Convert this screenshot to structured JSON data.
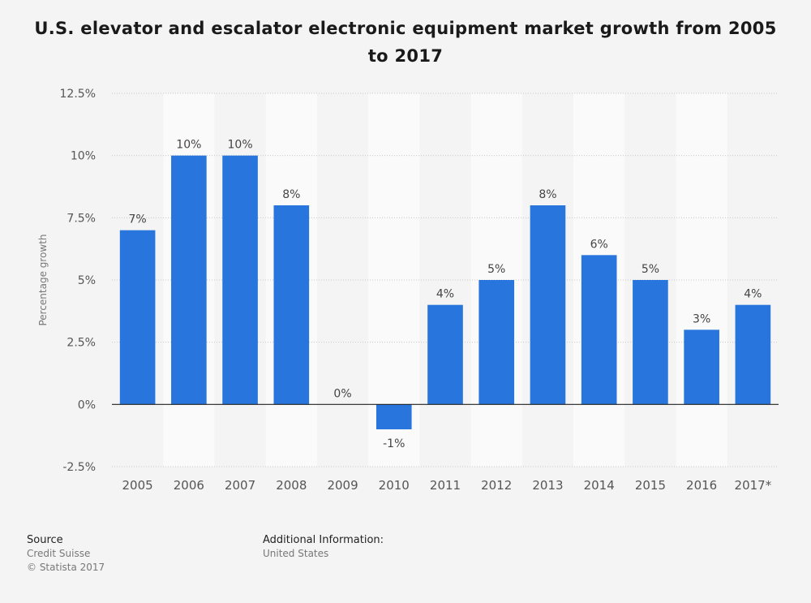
{
  "title": "U.S. elevator and escalator electronic equipment market growth from 2005 to 2017",
  "colors": {
    "bar": "#2876dd",
    "band": "#fafafa",
    "grid": "#c8c8c8",
    "axis": "#222222"
  },
  "chart_data": {
    "type": "bar",
    "title": "U.S. elevator and escalator electronic equipment market growth from 2005 to 2017",
    "ylabel": "Percentage growth",
    "xlabel": "",
    "categories": [
      "2005",
      "2006",
      "2007",
      "2008",
      "2009",
      "2010",
      "2011",
      "2012",
      "2013",
      "2014",
      "2015",
      "2016",
      "2017*"
    ],
    "values": [
      7,
      10,
      10,
      8,
      0,
      -1,
      4,
      5,
      8,
      6,
      5,
      3,
      4
    ],
    "value_labels": [
      "7%",
      "10%",
      "10%",
      "8%",
      "0%",
      "-1%",
      "4%",
      "5%",
      "8%",
      "6%",
      "5%",
      "3%",
      "4%"
    ],
    "yticks": [
      12.5,
      10,
      7.5,
      5,
      2.5,
      0,
      -2.5
    ],
    "ytick_labels": [
      "12.5%",
      "10%",
      "7.5%",
      "5%",
      "2.5%",
      "0%",
      "-2.5%"
    ],
    "ylim": [
      -2.5,
      12.5
    ],
    "grid": true,
    "legend": "none"
  },
  "footer": {
    "source_heading": "Source",
    "source_lines": [
      "Credit Suisse",
      "© Statista 2017"
    ],
    "additional_heading": "Additional Information:",
    "additional_lines": [
      "United States"
    ]
  }
}
